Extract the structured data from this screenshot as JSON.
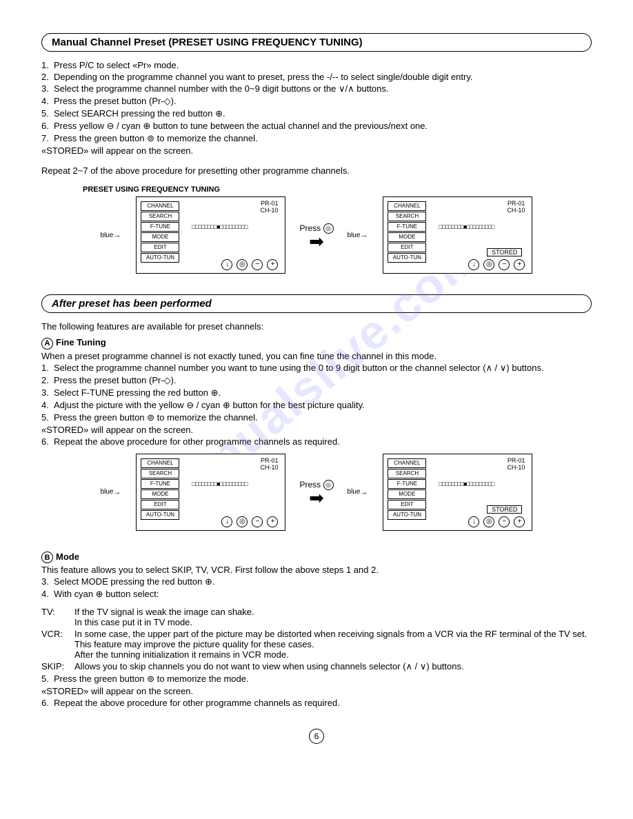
{
  "watermark": "manualslive.com",
  "section1": {
    "title": "Manual Channel Preset (PRESET USING FREQUENCY TUNING)",
    "steps": [
      "Press P/C to select «Pr» mode.",
      "Depending on the programme channel you want to preset, press the -/-- to select single/double digit entry.",
      "Select the programme channel number with the 0~9 digit buttons or the ∨/∧ buttons.",
      "Press the preset button (Pr-◇).",
      "Select SEARCH pressing the red button ⊕.",
      "Press yellow ⊖ / cyan ⊕ button to tune between the actual channel and the previous/next one.",
      "Press the green button ⊚ to memorize the channel."
    ],
    "stored_note": "«STORED» will appear on the screen.",
    "repeat": "Repeat 2~7 of the above procedure for presetting other programme channels.",
    "diag_title": "PRESET USING FREQUENCY TUNING"
  },
  "osd": {
    "menu": [
      "CHANNEL",
      "SEARCH",
      "F-TUNE",
      "MODE",
      "EDIT",
      "AUTO-TUN"
    ],
    "pr": "PR-01",
    "ch": "CH-10",
    "bar": "□□□□□□□□■□□□□□□□□□",
    "stored": "STORED",
    "blue": "blue",
    "press": "Press",
    "icons": [
      "⊕",
      "⊚",
      "⊖",
      "⊕"
    ]
  },
  "section2": {
    "title": "After preset has been performed",
    "intro": "The following features are available for preset channels:",
    "a_heading": "Fine Tuning",
    "a_intro": "When a preset programme channel is not exactly tuned, you can fine tune the channel in this mode.",
    "a_steps": [
      "Select the programme channel number you want to tune using the 0 to 9 digit button or the channel selector (∧ / ∨) buttons.",
      "Press the preset button (Pr-◇).",
      "Select F-TUNE pressing the red button ⊕.",
      "Adjust the picture with the yellow ⊖ / cyan ⊕ button for the best picture quality.",
      "Press the green button ⊚ to memorize the channel.",
      "Repeat the above procedure for other programme channels as required."
    ],
    "a_stored_note": "«STORED» will appear on the screen.",
    "b_heading": "Mode",
    "b_intro": "This feature allows you to select SKIP, TV, VCR. First follow the above steps 1 and 2.",
    "b_step3": "Select MODE pressing the red button ⊕.",
    "b_step4": "With cyan ⊕ button select:",
    "tv_label": "TV:",
    "tv_text1": "If the TV signal is weak the image can shake.",
    "tv_text2": "In this case put it in TV mode.",
    "vcr_label": "VCR:",
    "vcr_text1": "In some case, the upper part of the picture may be distorted when receiving signals from a VCR  via the RF terminal of the TV set.",
    "vcr_text2": "This feature may improve the picture quality for these cases.",
    "vcr_text3": "After the tunning initialization it remains in VCR mode.",
    "skip_label": "SKIP:",
    "skip_text": "Allows you to skip channels you do not want to view when using channels selector (∧ / ∨) buttons.",
    "b_step5": "Press the green button ⊚ to memorize the mode.",
    "b_stored_note": "«STORED» will appear on the screen.",
    "b_step6": "Repeat the above procedure for other programme channels as required."
  },
  "page": "6"
}
